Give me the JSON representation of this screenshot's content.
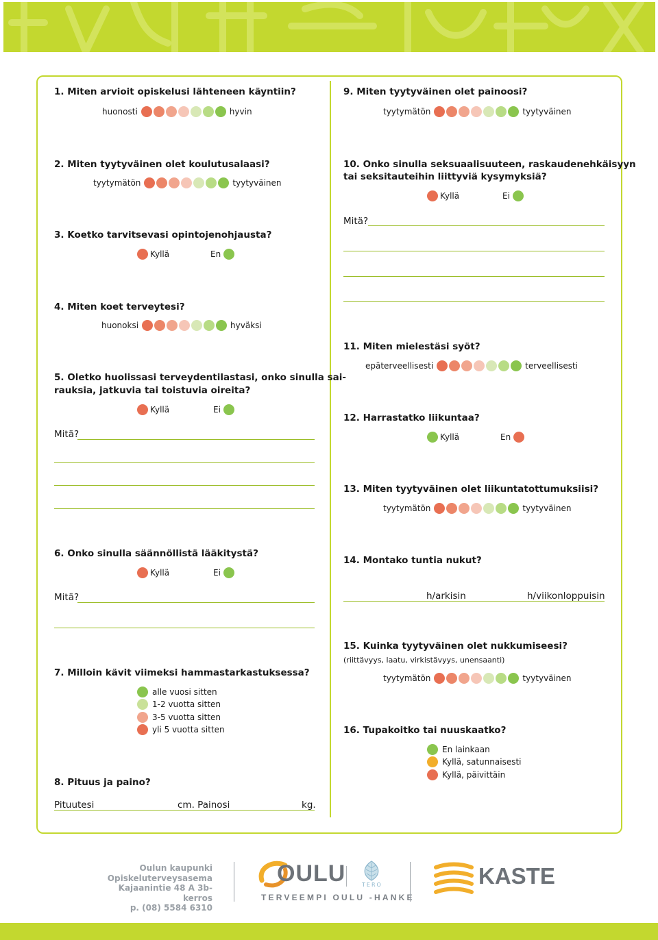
{
  "q1": {
    "label": "1. Miten arvioit opiskelusi lähteneen käyntiin?",
    "low": "huonosti",
    "high": "hyvin"
  },
  "q2": {
    "label": "2. Miten tyytyväinen olet koulutusalaasi?",
    "low": "tyytymätön",
    "high": "tyytyväinen"
  },
  "q3": {
    "label": "3. Koetko tarvitsevasi opintojenohjausta?",
    "yes": "Kyllä",
    "no": "En"
  },
  "q4": {
    "label": "4. Miten koet terveytesi?",
    "low": "huonoksi",
    "high": "hyväksi"
  },
  "q5": {
    "label_line1": "5. Oletko huolissasi terveydentilastasi, onko sinulla sai-",
    "label_line2": "rauksia, jatkuvia tai toistuvia oireita?",
    "yes": "Kyllä",
    "no": "Ei",
    "what": "Mitä?"
  },
  "q6": {
    "label": "6. Onko sinulla säännöllistä lääkitystä?",
    "yes": "Kyllä",
    "no": "Ei",
    "what": "Mitä?"
  },
  "q7": {
    "label": "7. Milloin kävit viimeksi hammastarkastuksessa?",
    "options": [
      "alle vuosi sitten",
      "1-2 vuotta sitten",
      "3-5 vuotta sitten",
      "yli 5 vuotta sitten"
    ]
  },
  "q8": {
    "label": "8. Pituus ja paino?",
    "height_label": "Pituutesi",
    "height_unit": "cm. Painosi",
    "weight_unit": "kg."
  },
  "q9": {
    "label": "9. Miten tyytyväinen olet painoosi?",
    "low": "tyytymätön",
    "high": "tyytyväinen"
  },
  "q10": {
    "label_line1": "10. Onko sinulla seksuaalisuuteen, raskaudenehkäisyyn",
    "label_line2": "tai seksitauteihin liittyviä kysymyksiä?",
    "yes": "Kyllä",
    "no": "Ei",
    "what": "Mitä?"
  },
  "q11": {
    "label": "11. Miten mielestäsi syöt?",
    "low": "epäterveellisesti",
    "high": "terveellisesti"
  },
  "q12": {
    "label": "12. Harrastatko liikuntaa?",
    "yes": "Kyllä",
    "no": "En"
  },
  "q13": {
    "label": "13. Miten tyytyväinen olet liikuntatottumuksiisi?",
    "low": "tyytymätön",
    "high": "tyytyväinen"
  },
  "q14": {
    "label": "14. Montako tuntia nukut?",
    "weekday": "h/arkisin",
    "weekend": "h/viikonloppuisin"
  },
  "q15": {
    "label": "15. Kuinka tyytyväinen olet nukkumiseesi?",
    "sub": "(riittävyys, laatu, virkistävyys, unensaanti)",
    "low": "tyytymätön",
    "high": "tyytyväinen"
  },
  "q16": {
    "label": "16. Tupakoitko tai nuuskaatko?",
    "options": [
      "En lainkaan",
      "Kyllä, satunnaisesti",
      "Kyllä, päivittäin"
    ]
  },
  "footer": {
    "address": [
      "Oulun kaupunki",
      "Opiskeluterveysasema",
      "Kajaanintie 48 A 3b-kerros",
      "p. (08) 5584 6310"
    ],
    "oulu_logo": "OULU",
    "tero_logo": "TERO",
    "tero_tagline": "TERVEEMPI OULU -HANKE",
    "kaste_logo": "KASTE"
  },
  "colors": {
    "accent_green": "#c3d82f",
    "scale": [
      "#e86f52",
      "#ec8668",
      "#f1a58d",
      "#f6c6b7",
      "#d8e8b6",
      "#b8dc85",
      "#8ac54e"
    ]
  }
}
